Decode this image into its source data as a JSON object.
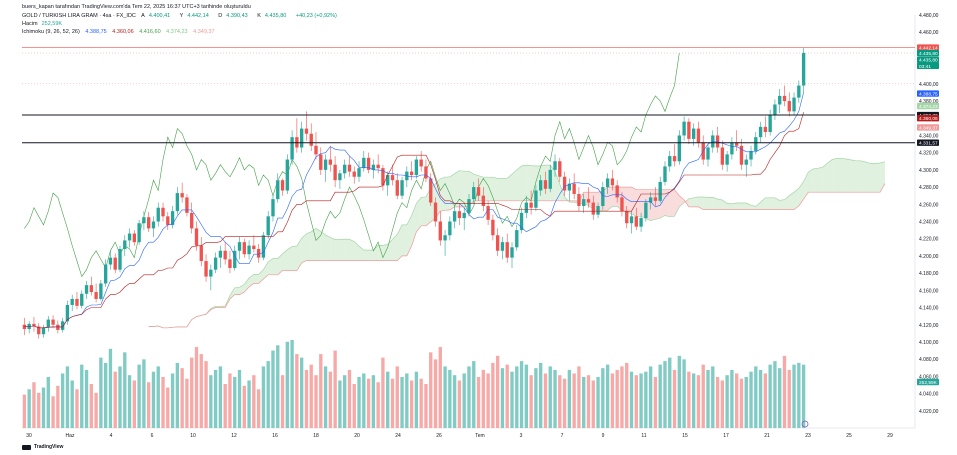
{
  "header": {
    "publish_line": "buers_kapan tarafından TradingView.com'da Tem 22, 2025 16:37 UTC+3 tarihinde oluşturuldu",
    "symbol": "GOLD / TURKISH LIRA GRAM · 4sa · FX_IDC",
    "ohlc": {
      "o_label": "A",
      "o": "4.400,41",
      "h_label": "Y",
      "h": "4.442,14",
      "l_label": "D",
      "l": "4.390,43",
      "c_label": "K",
      "c": "4.435,80",
      "chg": "+40,23 (+0,92%)"
    },
    "volume_label": "Hacim",
    "volume_value": "252,59K",
    "ichimoku_label": "Ichimoku (9, 26, 52, 26)",
    "ichimoku_values": [
      "4.388,75",
      "4.360,06",
      "4.416,60",
      "4.374,23",
      "4.349,37"
    ]
  },
  "colors": {
    "up": "#26a69a",
    "down": "#ef5350",
    "tenkan": "#2962ff",
    "kijun": "#b71c1c",
    "chikou": "#43a047",
    "span_a": "#a5d6a7",
    "span_b": "#ef9a9a"
  },
  "chart_data": {
    "type": "candlestick",
    "ylim": [
      4000,
      4480
    ],
    "y_ticks": [
      "4.480,00",
      "4.460,00",
      "4.440,00",
      "4.420,00",
      "4.400,00",
      "4.380,00",
      "4.360,00",
      "4.340,00",
      "4.320,00",
      "4.300,00",
      "4.280,00",
      "4.260,00",
      "4.240,00",
      "4.220,00",
      "4.200,00",
      "4.180,00",
      "4.160,00",
      "4.140,00",
      "4.120,00",
      "4.100,00",
      "4.080,00",
      "4.060,00",
      "4.040,00",
      "4.020,00"
    ],
    "x_ticks": [
      "30",
      "Haz",
      "4",
      "6",
      "10",
      "12",
      "16",
      "18",
      "20",
      "24",
      "26",
      "Tem",
      "3",
      "7",
      "9",
      "11",
      "15",
      "17",
      "21",
      "23",
      "25",
      "29"
    ],
    "price_labels": [
      {
        "value": 4442.14,
        "text": "4.442,14",
        "color": "#ef5350"
      },
      {
        "value": 4435.8,
        "text": "4.435,80",
        "color": "#089981"
      },
      {
        "value": 4428,
        "text": "4.435,80",
        "color": "#089981"
      },
      {
        "value": 4421,
        "text": "03:41",
        "color": "#089981"
      },
      {
        "value": 4388.75,
        "text": "4.388,75",
        "color": "#2962ff"
      },
      {
        "value": 4374.23,
        "text": "4.374,23",
        "color": "#a5d6a7"
      },
      {
        "value": 4363.73,
        "text": "4.363,73",
        "color": "#131722"
      },
      {
        "value": 4360.06,
        "text": "4.360,06",
        "color": "#b71c1c"
      },
      {
        "value": 4349.37,
        "text": "4.349,37",
        "color": "#ef9a9a"
      },
      {
        "value": 4331.57,
        "text": "4.331,57",
        "color": "#131722"
      }
    ],
    "horizontal_lines": [
      4363.73,
      4331.57
    ],
    "volume_label": "252,59K",
    "candles": [
      [
        4120,
        4128,
        4108,
        4115
      ],
      [
        4115,
        4124,
        4110,
        4121
      ],
      [
        4121,
        4129,
        4112,
        4118
      ],
      [
        4118,
        4122,
        4104,
        4109
      ],
      [
        4109,
        4120,
        4105,
        4117
      ],
      [
        4117,
        4130,
        4112,
        4126
      ],
      [
        4126,
        4131,
        4116,
        4120
      ],
      [
        4120,
        4125,
        4110,
        4114
      ],
      [
        4114,
        4128,
        4111,
        4124
      ],
      [
        4124,
        4148,
        4120,
        4143
      ],
      [
        4143,
        4155,
        4136,
        4150
      ],
      [
        4150,
        4158,
        4138,
        4142
      ],
      [
        4142,
        4160,
        4139,
        4156
      ],
      [
        4156,
        4171,
        4150,
        4166
      ],
      [
        4166,
        4176,
        4154,
        4158
      ],
      [
        4158,
        4168,
        4146,
        4150
      ],
      [
        4150,
        4172,
        4148,
        4168
      ],
      [
        4168,
        4196,
        4164,
        4190
      ],
      [
        4190,
        4206,
        4184,
        4198
      ],
      [
        4198,
        4203,
        4180,
        4184
      ],
      [
        4184,
        4212,
        4181,
        4208
      ],
      [
        4208,
        4224,
        4200,
        4218
      ],
      [
        4218,
        4232,
        4210,
        4226
      ],
      [
        4226,
        4230,
        4212,
        4216
      ],
      [
        4216,
        4242,
        4213,
        4238
      ],
      [
        4238,
        4252,
        4230,
        4245
      ],
      [
        4245,
        4251,
        4228,
        4232
      ],
      [
        4232,
        4246,
        4222,
        4240
      ],
      [
        4240,
        4262,
        4234,
        4256
      ],
      [
        4256,
        4262,
        4240,
        4246
      ],
      [
        4246,
        4251,
        4230,
        4236
      ],
      [
        4236,
        4258,
        4232,
        4252
      ],
      [
        4252,
        4280,
        4248,
        4273
      ],
      [
        4273,
        4285,
        4262,
        4268
      ],
      [
        4268,
        4272,
        4246,
        4250
      ],
      [
        4250,
        4262,
        4226,
        4232
      ],
      [
        4232,
        4240,
        4206,
        4212
      ],
      [
        4212,
        4222,
        4188,
        4194
      ],
      [
        4194,
        4202,
        4170,
        4176
      ],
      [
        4176,
        4190,
        4160,
        4184
      ],
      [
        4184,
        4204,
        4180,
        4198
      ],
      [
        4198,
        4212,
        4186,
        4206
      ],
      [
        4206,
        4216,
        4190,
        4196
      ],
      [
        4196,
        4206,
        4180,
        4186
      ],
      [
        4186,
        4212,
        4183,
        4206
      ],
      [
        4206,
        4222,
        4196,
        4216
      ],
      [
        4216,
        4220,
        4198,
        4202
      ],
      [
        4202,
        4218,
        4196,
        4212
      ],
      [
        4212,
        4224,
        4204,
        4208
      ],
      [
        4208,
        4214,
        4192,
        4198
      ],
      [
        4198,
        4228,
        4195,
        4224
      ],
      [
        4224,
        4252,
        4220,
        4246
      ],
      [
        4246,
        4272,
        4240,
        4266
      ],
      [
        4266,
        4296,
        4262,
        4288
      ],
      [
        4288,
        4290,
        4270,
        4276
      ],
      [
        4276,
        4318,
        4272,
        4312
      ],
      [
        4312,
        4346,
        4306,
        4338
      ],
      [
        4338,
        4360,
        4320,
        4326
      ],
      [
        4326,
        4356,
        4320,
        4348
      ],
      [
        4348,
        4368,
        4334,
        4342
      ],
      [
        4342,
        4354,
        4322,
        4328
      ],
      [
        4328,
        4344,
        4312,
        4318
      ],
      [
        4318,
        4326,
        4294,
        4300
      ],
      [
        4300,
        4318,
        4286,
        4312
      ],
      [
        4312,
        4328,
        4298,
        4306
      ],
      [
        4306,
        4316,
        4280,
        4288
      ],
      [
        4288,
        4300,
        4278,
        4296
      ],
      [
        4296,
        4312,
        4290,
        4306
      ],
      [
        4306,
        4316,
        4292,
        4298
      ],
      [
        4298,
        4304,
        4284,
        4292
      ],
      [
        4292,
        4310,
        4286,
        4302
      ],
      [
        4302,
        4322,
        4298,
        4314
      ],
      [
        4314,
        4320,
        4296,
        4300
      ],
      [
        4300,
        4312,
        4290,
        4306
      ],
      [
        4306,
        4318,
        4296,
        4302
      ],
      [
        4302,
        4306,
        4276,
        4282
      ],
      [
        4282,
        4298,
        4270,
        4294
      ],
      [
        4294,
        4306,
        4282,
        4288
      ],
      [
        4288,
        4296,
        4266,
        4270
      ],
      [
        4270,
        4292,
        4266,
        4288
      ],
      [
        4288,
        4304,
        4280,
        4298
      ],
      [
        4298,
        4310,
        4288,
        4294
      ],
      [
        4294,
        4316,
        4290,
        4312
      ],
      [
        4312,
        4322,
        4298,
        4304
      ],
      [
        4304,
        4312,
        4286,
        4290
      ],
      [
        4290,
        4296,
        4258,
        4262
      ],
      [
        4262,
        4268,
        4234,
        4240
      ],
      [
        4240,
        4252,
        4212,
        4218
      ],
      [
        4218,
        4230,
        4200,
        4224
      ],
      [
        4224,
        4246,
        4218,
        4240
      ],
      [
        4240,
        4258,
        4232,
        4252
      ],
      [
        4252,
        4260,
        4236,
        4244
      ],
      [
        4244,
        4256,
        4230,
        4250
      ],
      [
        4250,
        4272,
        4246,
        4266
      ],
      [
        4266,
        4286,
        4260,
        4280
      ],
      [
        4280,
        4290,
        4264,
        4270
      ],
      [
        4270,
        4280,
        4252,
        4258
      ],
      [
        4258,
        4264,
        4236,
        4242
      ],
      [
        4242,
        4248,
        4218,
        4224
      ],
      [
        4224,
        4232,
        4200,
        4206
      ],
      [
        4206,
        4222,
        4196,
        4216
      ],
      [
        4216,
        4226,
        4192,
        4198
      ],
      [
        4198,
        4216,
        4186,
        4210
      ],
      [
        4210,
        4236,
        4206,
        4230
      ],
      [
        4230,
        4256,
        4226,
        4250
      ],
      [
        4250,
        4270,
        4244,
        4262
      ],
      [
        4262,
        4276,
        4248,
        4256
      ],
      [
        4256,
        4282,
        4252,
        4276
      ],
      [
        4276,
        4294,
        4270,
        4288
      ],
      [
        4288,
        4298,
        4272,
        4278
      ],
      [
        4278,
        4306,
        4274,
        4300
      ],
      [
        4300,
        4318,
        4292,
        4310
      ],
      [
        4310,
        4314,
        4286,
        4292
      ],
      [
        4292,
        4298,
        4270,
        4276
      ],
      [
        4276,
        4290,
        4264,
        4284
      ],
      [
        4284,
        4296,
        4266,
        4272
      ],
      [
        4272,
        4280,
        4252,
        4258
      ],
      [
        4258,
        4272,
        4250,
        4266
      ],
      [
        4266,
        4280,
        4256,
        4262
      ],
      [
        4262,
        4270,
        4242,
        4248
      ],
      [
        4248,
        4262,
        4244,
        4258
      ],
      [
        4258,
        4286,
        4254,
        4280
      ],
      [
        4280,
        4296,
        4272,
        4290
      ],
      [
        4290,
        4300,
        4276,
        4282
      ],
      [
        4282,
        4288,
        4262,
        4268
      ],
      [
        4268,
        4274,
        4246,
        4252
      ],
      [
        4252,
        4258,
        4232,
        4238
      ],
      [
        4238,
        4252,
        4226,
        4246
      ],
      [
        4246,
        4256,
        4230,
        4234
      ],
      [
        4234,
        4250,
        4228,
        4244
      ],
      [
        4244,
        4266,
        4240,
        4262
      ],
      [
        4262,
        4274,
        4254,
        4268
      ],
      [
        4268,
        4280,
        4258,
        4264
      ],
      [
        4264,
        4292,
        4262,
        4286
      ],
      [
        4286,
        4310,
        4282,
        4304
      ],
      [
        4304,
        4322,
        4298,
        4316
      ],
      [
        4316,
        4330,
        4304,
        4310
      ],
      [
        4310,
        4346,
        4306,
        4340
      ],
      [
        4340,
        4362,
        4334,
        4356
      ],
      [
        4356,
        4360,
        4330,
        4336
      ],
      [
        4336,
        4354,
        4328,
        4348
      ],
      [
        4348,
        4356,
        4326,
        4332
      ],
      [
        4332,
        4340,
        4306,
        4312
      ],
      [
        4312,
        4330,
        4304,
        4326
      ],
      [
        4326,
        4346,
        4320,
        4340
      ],
      [
        4340,
        4350,
        4320,
        4326
      ],
      [
        4326,
        4334,
        4300,
        4306
      ],
      [
        4306,
        4322,
        4298,
        4318
      ],
      [
        4318,
        4338,
        4312,
        4332
      ],
      [
        4332,
        4346,
        4322,
        4328
      ],
      [
        4328,
        4336,
        4300,
        4306
      ],
      [
        4306,
        4318,
        4292,
        4312
      ],
      [
        4312,
        4328,
        4304,
        4322
      ],
      [
        4322,
        4344,
        4318,
        4338
      ],
      [
        4338,
        4356,
        4332,
        4350
      ],
      [
        4350,
        4362,
        4338,
        4344
      ],
      [
        4344,
        4370,
        4340,
        4364
      ],
      [
        4364,
        4382,
        4358,
        4376
      ],
      [
        4376,
        4394,
        4366,
        4386
      ],
      [
        4386,
        4398,
        4374,
        4380
      ],
      [
        4380,
        4390,
        4362,
        4368
      ],
      [
        4368,
        4390,
        4364,
        4384
      ],
      [
        4384,
        4404,
        4378,
        4398
      ],
      [
        4398,
        4442,
        4390,
        4436
      ]
    ],
    "volumes": [
      38,
      44,
      52,
      40,
      46,
      58,
      36,
      48,
      62,
      70,
      54,
      44,
      72,
      66,
      50,
      40,
      80,
      74,
      90,
      64,
      70,
      86,
      60,
      54,
      72,
      78,
      52,
      64,
      70,
      58,
      46,
      62,
      74,
      68,
      56,
      80,
      92,
      84,
      76,
      60,
      66,
      70,
      50,
      62,
      58,
      66,
      48,
      54,
      60,
      44,
      70,
      76,
      88,
      94,
      60,
      98,
      100,
      84,
      80,
      66,
      72,
      60,
      84,
      70,
      64,
      88,
      54,
      60,
      66,
      50,
      58,
      62,
      56,
      60,
      52,
      80,
      64,
      56,
      70,
      58,
      62,
      54,
      64,
      56,
      50,
      86,
      78,
      92,
      70,
      66,
      60,
      54,
      62,
      70,
      76,
      58,
      66,
      62,
      74,
      82,
      68,
      72,
      64,
      70,
      76,
      72,
      60,
      68,
      74,
      62,
      70,
      66,
      60,
      56,
      66,
      62,
      70,
      58,
      60,
      54,
      58,
      68,
      72,
      62,
      66,
      70,
      74,
      64,
      60,
      62,
      64,
      70,
      58,
      72,
      76,
      80,
      66,
      82,
      78,
      64,
      62,
      60,
      72,
      66,
      70,
      58,
      54,
      60,
      66,
      62,
      56,
      58,
      64,
      70,
      66,
      62,
      72,
      76,
      68,
      82,
      66,
      72,
      74,
      72
    ]
  }
}
